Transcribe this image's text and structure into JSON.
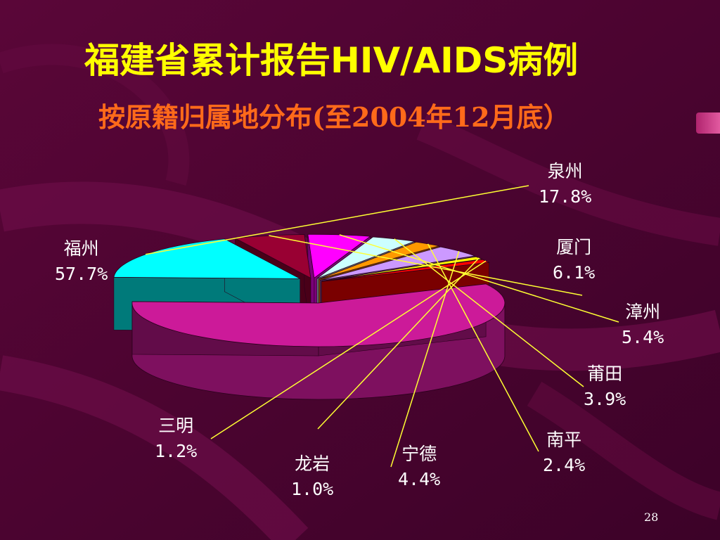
{
  "slide": {
    "title": "福建省累计报告HIV/AIDS病例",
    "subtitle": "按原籍归属地分布(至2004年12月底）",
    "page_number": "28"
  },
  "chart_data": {
    "type": "pie",
    "style": "3d-exploded",
    "title": "福建省累计报告HIV/AIDS病例",
    "subtitle": "按原籍归属地分布(至2004年12月底）",
    "slices": [
      {
        "name": "福州",
        "label": "57.7%",
        "value": 57.7,
        "color": "#cc1a99"
      },
      {
        "name": "泉州",
        "label": "17.8%",
        "value": 17.8,
        "color": "#00ffff"
      },
      {
        "name": "厦门",
        "label": "6.1%",
        "value": 6.1,
        "color": "#990033"
      },
      {
        "name": "漳州",
        "label": "5.4%",
        "value": 5.4,
        "color": "#ff00ff"
      },
      {
        "name": "莆田",
        "label": "3.9%",
        "value": 3.9,
        "color": "#ccffff"
      },
      {
        "name": "南平",
        "label": "2.4%",
        "value": 2.4,
        "color": "#ff9900"
      },
      {
        "name": "宁德",
        "label": "4.4%",
        "value": 4.4,
        "color": "#cc99ff"
      },
      {
        "name": "龙岩",
        "label": "1.0%",
        "value": 1.0,
        "color": "#ffff00"
      },
      {
        "name": "三明",
        "label": "1.2%",
        "value": 1.2,
        "color": "#ff0000"
      }
    ],
    "legend": "none",
    "label_color": "#ffffff",
    "leader_color": "#ffff33"
  }
}
